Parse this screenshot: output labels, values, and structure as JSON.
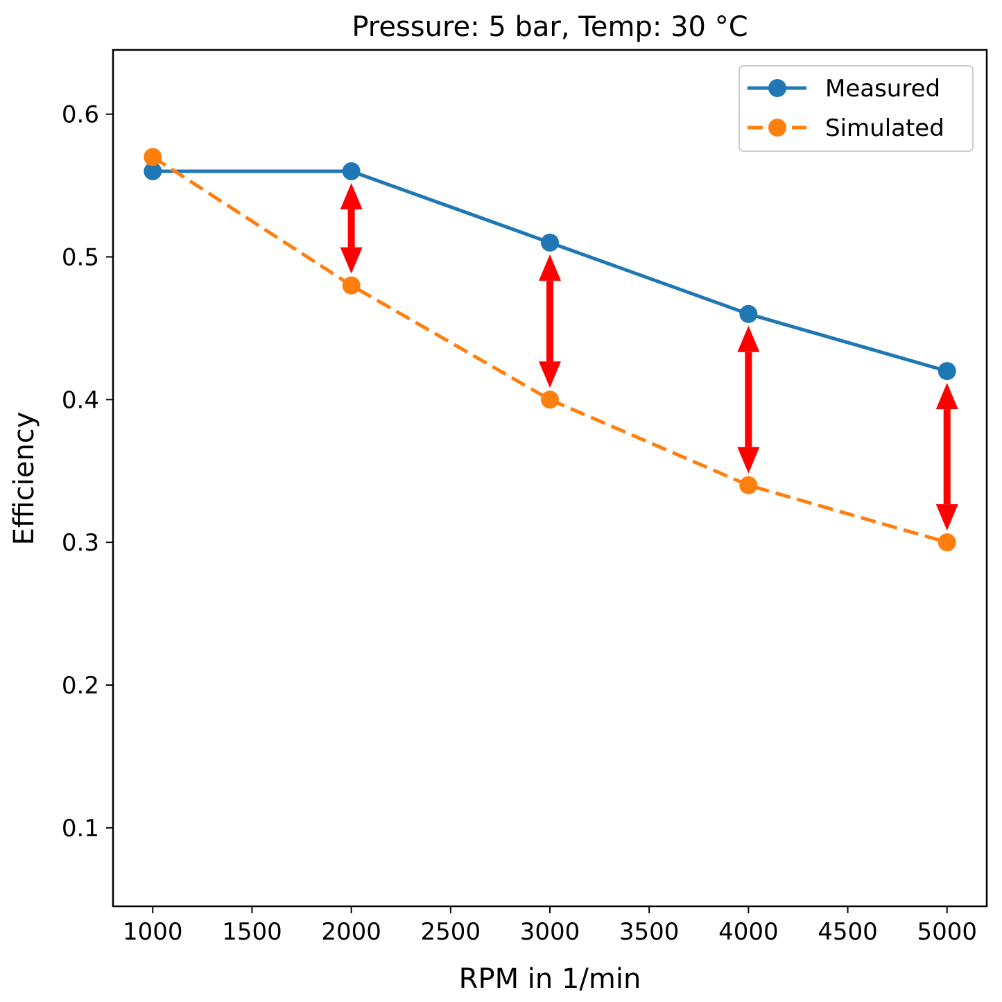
{
  "chart_data": {
    "type": "line",
    "title": "Pressure: 5 bar, Temp: 30 °C",
    "xlabel": "RPM in 1/min",
    "ylabel": "Efficiency",
    "x": [
      1000,
      2000,
      3000,
      4000,
      5000
    ],
    "xlim": [
      800,
      5200
    ],
    "ylim": [
      0.045,
      0.645
    ],
    "xticks": [
      1000,
      1500,
      2000,
      2500,
      3000,
      3500,
      4000,
      4500,
      5000
    ],
    "yticks": [
      0.1,
      0.2,
      0.3,
      0.4,
      0.5,
      0.6
    ],
    "grid": false,
    "legend_position": "top-right",
    "series": [
      {
        "name": "Measured",
        "values": [
          0.56,
          0.56,
          0.51,
          0.46,
          0.42
        ],
        "color": "#1f77b4",
        "style": "solid",
        "marker": "circle"
      },
      {
        "name": "Simulated",
        "values": [
          0.57,
          0.48,
          0.4,
          0.34,
          0.3
        ],
        "color": "#ff7f0e",
        "style": "dashed",
        "marker": "circle"
      }
    ],
    "annotations": {
      "type": "double-arrow",
      "color": "#ff0000",
      "between": [
        "Measured",
        "Simulated"
      ],
      "at_x": [
        2000,
        3000,
        4000,
        5000
      ]
    }
  }
}
